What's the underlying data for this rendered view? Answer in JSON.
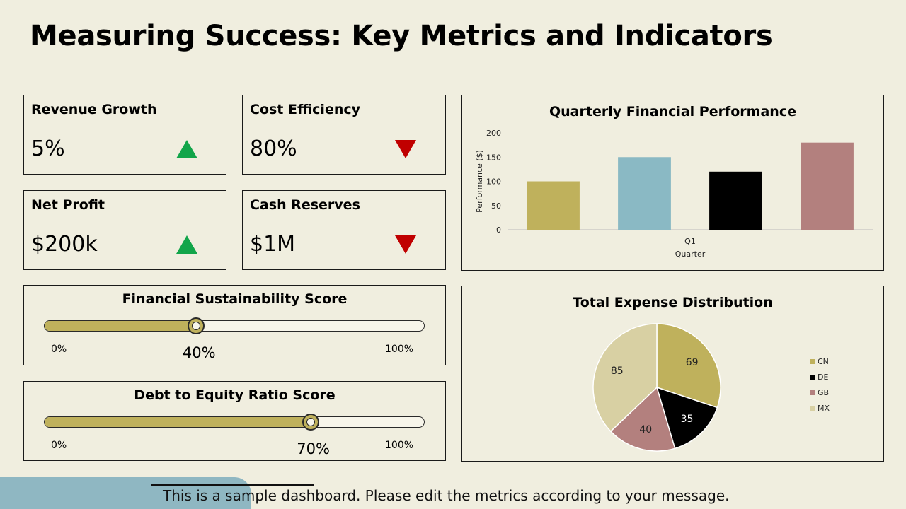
{
  "title": "Measuring Success: Key Metrics and Indicators",
  "kpis": [
    {
      "label": "Revenue Growth",
      "value": "5%",
      "trend": "up",
      "trend_color": "#12a54a",
      "icon": "triangle-up-icon"
    },
    {
      "label": "Cost Efficiency",
      "value": "80%",
      "trend": "down",
      "trend_color": "#c00000",
      "icon": "triangle-down-icon"
    },
    {
      "label": "Net Profit",
      "value": "$200k",
      "trend": "up",
      "trend_color": "#12a54a",
      "icon": "triangle-up-icon"
    },
    {
      "label": "Cash Reserves",
      "value": "$1M",
      "trend": "down",
      "trend_color": "#c00000",
      "icon": "triangle-down-icon"
    }
  ],
  "sliders": [
    {
      "title": "Financial Sustainability Score",
      "min_label": "0%",
      "max_label": "100%",
      "value_label": "40%",
      "value": 0.4
    },
    {
      "title": "Debt to Equity Ratio Score",
      "min_label": "0%",
      "max_label": "100%",
      "value_label": "70%",
      "value": 0.7
    }
  ],
  "chart_data": [
    {
      "type": "bar",
      "title": "Quarterly Financial Performance",
      "categories": [
        "Q1"
      ],
      "series": [
        {
          "values": [
            100
          ],
          "color": "#bfb15c"
        },
        {
          "values": [
            150
          ],
          "color": "#8ab9c4"
        },
        {
          "values": [
            120
          ],
          "color": "#000000"
        },
        {
          "values": [
            180
          ],
          "color": "#b3807e"
        }
      ],
      "xlabel": "Quarter",
      "ylabel": "Performance ($)",
      "ylim": [
        0,
        200
      ],
      "yticks": [
        "0",
        "50",
        "100",
        "150",
        "200"
      ],
      "grid": false,
      "legend": "none"
    },
    {
      "type": "pie",
      "title": "Total Expense Distribution",
      "labels": [
        "CN",
        "DE",
        "GB",
        "MX"
      ],
      "values": [
        69,
        35,
        40,
        85
      ],
      "colors": [
        "#bfb15c",
        "#000000",
        "#b3807e",
        "#d8d0a3"
      ],
      "legend": "right"
    }
  ],
  "footer": "This is a sample dashboard. Please edit the metrics according to your message."
}
